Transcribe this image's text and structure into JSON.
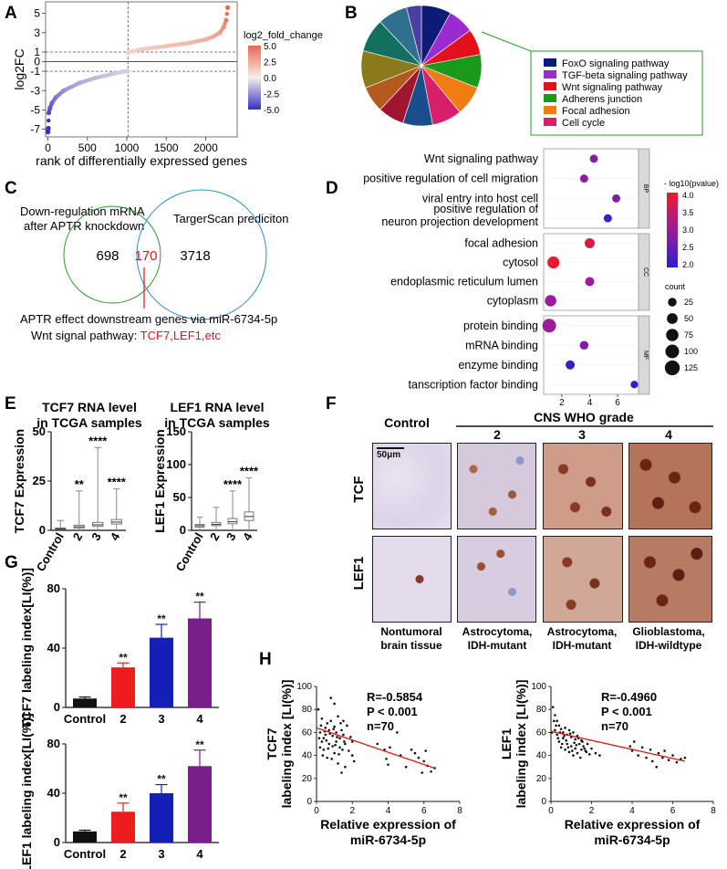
{
  "panel_letters": [
    "A",
    "B",
    "C",
    "D",
    "E",
    "F",
    "G",
    "H"
  ],
  "panelA": {
    "ylabel": "log2FC",
    "xlabel": "rank of differentially expressed genes",
    "xticks": [
      "0",
      "500",
      "1000",
      "1500",
      "2000"
    ],
    "yticks": [
      "5",
      "3",
      "1",
      "0",
      "-1",
      "-3",
      "-5",
      "-7"
    ],
    "legend_title": "log2_fold_change",
    "legend_ticks": [
      "5.0",
      "2.5",
      "0.0",
      "-2.5",
      "-5.0"
    ],
    "colors": {
      "high": "#e8694f",
      "mid": "#f4efe8",
      "low": "#3a2fc4"
    }
  },
  "chart_data": [
    {
      "type": "scatter",
      "panel": "A",
      "title": "",
      "xlabel": "rank of differentially expressed genes",
      "ylabel": "log2FC",
      "xlim": [
        -30,
        2400
      ],
      "ylim": [
        -7.8,
        6.2
      ],
      "ranked_curve": [
        [
          0,
          -7.3
        ],
        [
          5,
          -6.9
        ],
        [
          10,
          -5.3
        ],
        [
          25,
          -4.8
        ],
        [
          50,
          -4.3
        ],
        [
          100,
          -3.7
        ],
        [
          200,
          -3.0
        ],
        [
          400,
          -2.2
        ],
        [
          600,
          -1.7
        ],
        [
          800,
          -1.3
        ],
        [
          950,
          -1.05
        ],
        [
          1010,
          -1.0
        ],
        [
          1020,
          1.0
        ],
        [
          1200,
          1.3
        ],
        [
          1500,
          1.6
        ],
        [
          1800,
          1.95
        ],
        [
          2000,
          2.3
        ],
        [
          2100,
          2.6
        ],
        [
          2180,
          3.0
        ],
        [
          2230,
          3.6
        ],
        [
          2260,
          4.3
        ],
        [
          2280,
          5.6
        ]
      ],
      "reference_lines": {
        "vertical_x": 1015,
        "horizontal_y": [
          1,
          -1,
          0
        ]
      }
    },
    {
      "type": "pie",
      "panel": "B",
      "legend": [
        "FoxO signaling pathway",
        "TGF-beta signaling pathway",
        "Wnt signaling pathway",
        "Adherens junction",
        "Focal adhesion",
        "Cell cycle"
      ],
      "slices": [
        {
          "value": 8,
          "color": "#0d1a78"
        },
        {
          "value": 7,
          "color": "#9a2bd0"
        },
        {
          "value": 7,
          "color": "#e3111c"
        },
        {
          "value": 9,
          "color": "#1a9a1a"
        },
        {
          "value": 8,
          "color": "#f07c14"
        },
        {
          "value": 8,
          "color": "#d8206a"
        },
        {
          "value": 8,
          "color": "#1a4d8c"
        },
        {
          "value": 7,
          "color": "#a01530"
        },
        {
          "value": 7,
          "color": "#b35a1f"
        },
        {
          "value": 10,
          "color": "#8a7a1c"
        },
        {
          "value": 9,
          "color": "#137060"
        },
        {
          "value": 8,
          "color": "#2f6f8f"
        },
        {
          "value": 4,
          "color": "#4a3fa0"
        }
      ],
      "legend_colors": [
        "#0d1a78",
        "#9a2bd0",
        "#e3111c",
        "#1a9a1a",
        "#f07c14",
        "#d8206a"
      ]
    },
    {
      "type": "scatter",
      "panel": "D",
      "xticks": [
        "2",
        "4",
        "6"
      ],
      "xlim": [
        0.7,
        7.5
      ],
      "groups": [
        {
          "facet": "BP",
          "terms": [
            {
              "term": "Wnt signaling pathway",
              "x": 4.3,
              "count": 20,
              "logp": 2.7
            },
            {
              "term": "positive regulation of cell migration",
              "x": 3.6,
              "count": 20,
              "logp": 2.9
            },
            {
              "term": "viral entry into host cell",
              "x": 5.9,
              "count": 20,
              "logp": 2.8
            },
            {
              "term": "positive regulation of neuron projection development",
              "x": 5.3,
              "count": 20,
              "logp": 1.9
            }
          ]
        },
        {
          "facet": "CC",
          "terms": [
            {
              "term": "focal adhesion",
              "x": 4.0,
              "count": 40,
              "logp": 3.9
            },
            {
              "term": "cytosol",
              "x": 1.4,
              "count": 70,
              "logp": 4.1
            },
            {
              "term": "endoplasmic reticulum lumen",
              "x": 4.0,
              "count": 30,
              "logp": 3.0
            },
            {
              "term": "cytoplasm",
              "x": 1.2,
              "count": 60,
              "logp": 3.0
            }
          ]
        },
        {
          "facet": "MF",
          "terms": [
            {
              "term": "protein binding",
              "x": 1.1,
              "count": 100,
              "logp": 3.0
            },
            {
              "term": "mRNA binding",
              "x": 3.6,
              "count": 25,
              "logp": 2.7
            },
            {
              "term": "enzyme binding",
              "x": 2.6,
              "count": 30,
              "logp": 1.9
            },
            {
              "term": "tanscription factor binding",
              "x": 7.2,
              "count": 15,
              "logp": 1.8
            }
          ]
        }
      ],
      "color_legend_title": "- log10(pvalue)",
      "color_ticks": [
        "4.0",
        "3.5",
        "3.0",
        "2.5",
        "2.0"
      ],
      "size_legend_title": "count",
      "size_ticks": [
        "25",
        "50",
        "75",
        "100",
        "125"
      ]
    },
    {
      "type": "box",
      "panel": "E-TCF7",
      "title": "TCF7 RNA level in TCGA samples",
      "ylabel": "TCF7 Expression",
      "categories": [
        "Control",
        "2",
        "3",
        "4"
      ],
      "ylim": [
        0,
        50
      ],
      "yticks": [
        "0",
        "25",
        "50"
      ],
      "boxes": [
        {
          "min": 0,
          "q1": 0.4,
          "median": 0.8,
          "q3": 1.2,
          "max": 5,
          "sig": ""
        },
        {
          "min": 0,
          "q1": 1.2,
          "median": 1.8,
          "q3": 2.6,
          "max": 20,
          "sig": "**"
        },
        {
          "min": 0,
          "q1": 2,
          "median": 2.8,
          "q3": 4,
          "max": 42,
          "sig": "****"
        },
        {
          "min": 0,
          "q1": 3.2,
          "median": 4.2,
          "q3": 5.5,
          "max": 21,
          "sig": "****"
        }
      ]
    },
    {
      "type": "box",
      "panel": "E-LEF1",
      "title": "LEF1 RNA level in TCGA samples",
      "ylabel": "LEF1 Expression",
      "categories": [
        "Control",
        "2",
        "3",
        "4"
      ],
      "ylim": [
        0,
        150
      ],
      "yticks": [
        "0",
        "50",
        "100",
        "150"
      ],
      "boxes": [
        {
          "min": 0,
          "q1": 5,
          "median": 7,
          "q3": 9,
          "max": 20,
          "sig": ""
        },
        {
          "min": 0,
          "q1": 7,
          "median": 9,
          "q3": 12,
          "max": 35,
          "sig": ""
        },
        {
          "min": 0,
          "q1": 10,
          "median": 13,
          "q3": 18,
          "max": 60,
          "sig": "****"
        },
        {
          "min": 0,
          "q1": 15,
          "median": 21,
          "q3": 28,
          "max": 80,
          "sig": "****"
        }
      ]
    },
    {
      "type": "bar",
      "panel": "G-TCF7",
      "ylabel": "TCF7 labeling index[LI(%)]",
      "categories": [
        "Control",
        "2",
        "3",
        "4"
      ],
      "values": [
        6,
        27,
        47,
        60
      ],
      "errors": [
        1,
        3,
        9,
        11
      ],
      "sig": [
        "",
        "**",
        "**",
        "**"
      ],
      "colors": [
        "#111111",
        "#ee1c1c",
        "#1220b8",
        "#7a1f8a"
      ],
      "ylim": [
        0,
        80
      ],
      "yticks": [
        "0",
        "40",
        "80"
      ]
    },
    {
      "type": "bar",
      "panel": "G-LEF1",
      "ylabel": "LEF1 labeling index[LI(%)]",
      "categories": [
        "Control",
        "2",
        "3",
        "4"
      ],
      "values": [
        9,
        25,
        40,
        62
      ],
      "errors": [
        1,
        7,
        7,
        13
      ],
      "sig": [
        "",
        "**",
        "**",
        "**"
      ],
      "colors": [
        "#111111",
        "#ee1c1c",
        "#1220b8",
        "#7a1f8a"
      ],
      "ylim": [
        0,
        80
      ],
      "yticks": [
        "0",
        "40",
        "80"
      ]
    },
    {
      "type": "scatter",
      "panel": "H-TCF7",
      "ylabel": "TCF7 labeling index [LI(%)]",
      "xlabel": "Relative expression of miR-6734-5p",
      "xlim": [
        0,
        8
      ],
      "ylim": [
        0,
        100
      ],
      "xticks": [
        "0",
        "2",
        "4",
        "6",
        "8"
      ],
      "yticks": [
        "0",
        "20",
        "40",
        "60",
        "80",
        "100"
      ],
      "stats": [
        "R=-0.5854",
        "P < 0.001",
        "n=70"
      ],
      "fit": [
        [
          0,
          64
        ],
        [
          6.6,
          29
        ]
      ],
      "points": [
        [
          0.2,
          60
        ],
        [
          0.3,
          72
        ],
        [
          0.3,
          52
        ],
        [
          0.4,
          55
        ],
        [
          0.4,
          45
        ],
        [
          0.5,
          64
        ],
        [
          0.5,
          58
        ],
        [
          0.6,
          68
        ],
        [
          0.6,
          38
        ],
        [
          0.7,
          50
        ],
        [
          0.7,
          62
        ],
        [
          0.8,
          90
        ],
        [
          0.8,
          70
        ],
        [
          0.9,
          57
        ],
        [
          0.9,
          48
        ],
        [
          1.0,
          85
        ],
        [
          1.0,
          65
        ],
        [
          1.0,
          42
        ],
        [
          1.1,
          60
        ],
        [
          1.1,
          52
        ],
        [
          1.2,
          74
        ],
        [
          1.2,
          33
        ],
        [
          1.3,
          55
        ],
        [
          1.3,
          47
        ],
        [
          1.4,
          62
        ],
        [
          1.4,
          25
        ],
        [
          1.5,
          58
        ],
        [
          1.5,
          70
        ],
        [
          1.6,
          50
        ],
        [
          1.6,
          30
        ],
        [
          1.7,
          66
        ],
        [
          1.8,
          44
        ],
        [
          1.9,
          56
        ],
        [
          2.0,
          40
        ],
        [
          2.0,
          52
        ],
        [
          2.1,
          35
        ],
        [
          0.1,
          80
        ],
        [
          0.15,
          55
        ],
        [
          0.2,
          47
        ],
        [
          0.25,
          66
        ],
        [
          0.35,
          40
        ],
        [
          0.45,
          61
        ],
        [
          0.55,
          53
        ],
        [
          0.65,
          46
        ],
        [
          0.75,
          59
        ],
        [
          0.85,
          37
        ],
        [
          0.95,
          63
        ],
        [
          1.05,
          49
        ],
        [
          1.15,
          56
        ],
        [
          1.25,
          41
        ],
        [
          1.35,
          68
        ],
        [
          1.45,
          45
        ],
        [
          1.55,
          52
        ],
        [
          3.4,
          50
        ],
        [
          3.8,
          45
        ],
        [
          3.9,
          37
        ],
        [
          4.0,
          32
        ],
        [
          4.1,
          47
        ],
        [
          4.5,
          60
        ],
        [
          4.7,
          40
        ],
        [
          5.0,
          30
        ],
        [
          5.3,
          45
        ],
        [
          5.5,
          42
        ],
        [
          5.7,
          38
        ],
        [
          5.9,
          25
        ],
        [
          6.0,
          35
        ],
        [
          6.2,
          31
        ],
        [
          6.4,
          26
        ],
        [
          6.6,
          29
        ],
        [
          6.1,
          44
        ]
      ]
    },
    {
      "type": "scatter",
      "panel": "H-LEF1",
      "ylabel": "LEF1 labeling index [LI(%)]",
      "xlabel": "Relative expression of miR-6734-5p",
      "xlim": [
        0,
        8
      ],
      "ylim": [
        0,
        100
      ],
      "xticks": [
        "0",
        "2",
        "4",
        "6",
        "8"
      ],
      "yticks": [
        "0",
        "20",
        "40",
        "60",
        "80",
        "100"
      ],
      "stats": [
        "R=-0.4960",
        "P < 0.001",
        "n=70"
      ],
      "fit": [
        [
          0,
          61
        ],
        [
          6.6,
          35
        ]
      ],
      "points": [
        [
          0.1,
          82
        ],
        [
          0.2,
          75
        ],
        [
          0.2,
          62
        ],
        [
          0.3,
          70
        ],
        [
          0.3,
          58
        ],
        [
          0.4,
          66
        ],
        [
          0.4,
          52
        ],
        [
          0.5,
          63
        ],
        [
          0.5,
          47
        ],
        [
          0.6,
          60
        ],
        [
          0.6,
          55
        ],
        [
          0.7,
          64
        ],
        [
          0.7,
          45
        ],
        [
          0.8,
          58
        ],
        [
          0.8,
          50
        ],
        [
          0.9,
          62
        ],
        [
          0.9,
          43
        ],
        [
          1.0,
          56
        ],
        [
          1.0,
          48
        ],
        [
          1.1,
          60
        ],
        [
          1.1,
          40
        ],
        [
          1.2,
          54
        ],
        [
          1.2,
          46
        ],
        [
          1.3,
          57
        ],
        [
          1.3,
          42
        ],
        [
          1.4,
          50
        ],
        [
          1.5,
          53
        ],
        [
          1.5,
          45
        ],
        [
          1.6,
          48
        ],
        [
          1.7,
          44
        ],
        [
          1.8,
          50
        ],
        [
          1.9,
          41
        ],
        [
          2.0,
          46
        ],
        [
          2.2,
          42
        ],
        [
          2.4,
          40
        ],
        [
          0.15,
          70
        ],
        [
          0.25,
          66
        ],
        [
          0.35,
          55
        ],
        [
          0.45,
          60
        ],
        [
          0.55,
          50
        ],
        [
          0.65,
          57
        ],
        [
          0.75,
          53
        ],
        [
          0.85,
          47
        ],
        [
          0.95,
          59
        ],
        [
          1.05,
          44
        ],
        [
          1.15,
          51
        ],
        [
          1.25,
          49
        ],
        [
          1.35,
          55
        ],
        [
          1.45,
          38
        ],
        [
          1.55,
          52
        ],
        [
          1.65,
          46
        ],
        [
          1.75,
          43
        ],
        [
          3.9,
          48
        ],
        [
          4.0,
          44
        ],
        [
          4.1,
          52
        ],
        [
          4.3,
          40
        ],
        [
          4.5,
          47
        ],
        [
          4.7,
          38
        ],
        [
          4.9,
          45
        ],
        [
          5.0,
          35
        ],
        [
          5.2,
          30
        ],
        [
          5.3,
          42
        ],
        [
          5.5,
          38
        ],
        [
          5.6,
          44
        ],
        [
          5.8,
          36
        ],
        [
          6.0,
          40
        ],
        [
          6.2,
          34
        ],
        [
          6.4,
          37
        ],
        [
          6.6,
          38
        ],
        [
          0.05,
          60
        ]
      ]
    }
  ],
  "panelC": {
    "down_label_line1": "Down-regulation mRNA",
    "down_label_line2": "after APTR knockdown",
    "target_label": "TargerScan prediciton",
    "left_only": "698",
    "overlap": "170",
    "right_only": "3718",
    "effect_text": "APTR effect downstream genes via miR-6734-5p",
    "wnt_prefix": "Wnt signal pathway: ",
    "wnt_genes": "TCF7,LEF1,etc",
    "colors": {
      "left": "#2e9a2e",
      "right": "#2a8fc8",
      "overlap": "#e01515"
    }
  },
  "panelD": {
    "facets": [
      "BP",
      "CC",
      "MF"
    ]
  },
  "panelE": {
    "tcf7_title1": "TCF7 RNA level",
    "tcf7_title2": "in TCGA samples",
    "lef1_title1": "LEF1 RNA level",
    "lef1_title2": "in TCGA samples"
  },
  "panelF": {
    "header_control": "Control",
    "header_grade": "CNS  WHO  grade",
    "grades": [
      "2",
      "3",
      "4"
    ],
    "scale_bar": "50μm",
    "row_labels": [
      "TCF",
      "LEF1"
    ],
    "captions": [
      [
        "Nontumoral",
        "brain tissue"
      ],
      [
        "Astrocytoma,",
        "IDH-mutant"
      ],
      [
        "Astrocytoma,",
        "IDH-mutant"
      ],
      [
        "Glioblastoma,",
        "IDH-wildtype"
      ]
    ]
  }
}
